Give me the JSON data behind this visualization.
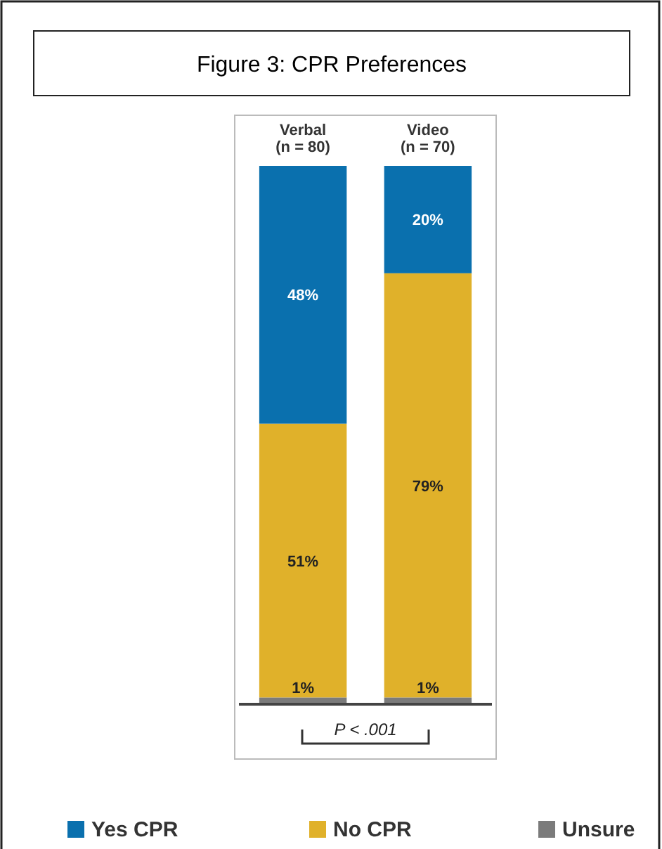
{
  "chart_data": {
    "type": "bar",
    "title": "Figure 3: CPR Preferences",
    "categories": [
      "Verbal\n(n = 80)",
      "Video\n(n = 70)"
    ],
    "stacked": true,
    "legend": "bottom",
    "annotations": [
      "P < .001"
    ],
    "series": [
      {
        "name": "Unsure",
        "color": "#7b7b7b",
        "values": [
          1,
          1
        ],
        "value_labels": [
          "1%",
          "1%"
        ]
      },
      {
        "name": "No CPR",
        "color": "#e0b12a",
        "values": [
          51,
          79
        ],
        "value_labels": [
          "51%",
          "79%"
        ]
      },
      {
        "name": "Yes CPR",
        "color": "#0a70ae",
        "values": [
          48,
          20
        ],
        "value_labels": [
          "48%",
          "20%"
        ]
      }
    ]
  }
}
